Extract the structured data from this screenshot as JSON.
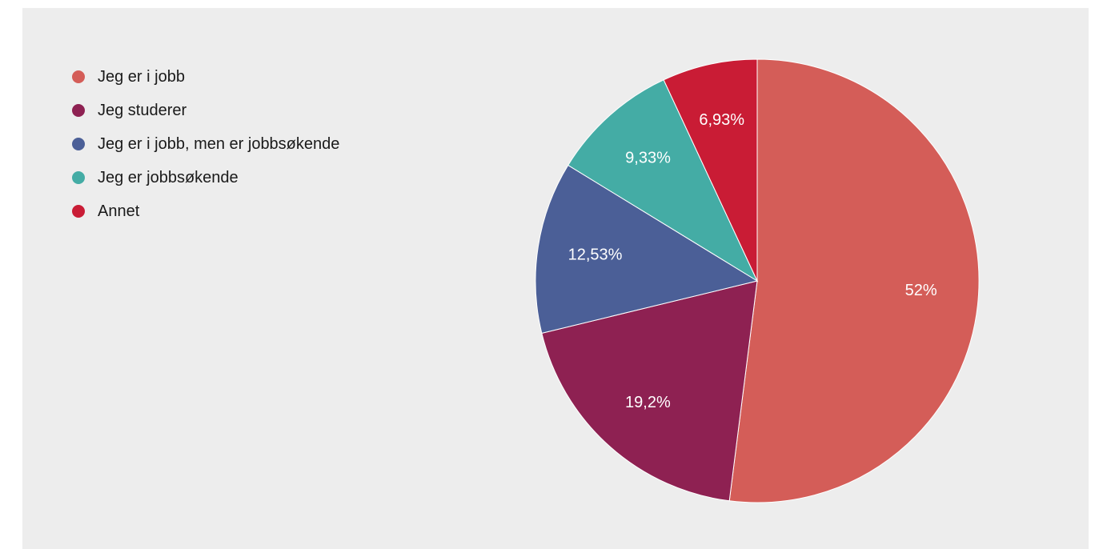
{
  "chart_data": {
    "type": "pie",
    "categories": [
      "Jeg er i jobb",
      "Jeg studerer",
      "Jeg er i jobb, men er jobbsøkende",
      "Jeg er jobbsøkende",
      "Annet"
    ],
    "values": [
      52,
      19.2,
      12.53,
      9.33,
      6.93
    ],
    "value_labels": [
      "52%",
      "19,2%",
      "12,53%",
      "9,33%",
      "6,93%"
    ],
    "colors": [
      "#d45d58",
      "#8e2152",
      "#4b5f97",
      "#44aca5",
      "#c91c35"
    ],
    "legend_position": "top-left",
    "start_angle": "12 o'clock",
    "direction": "clockwise"
  }
}
